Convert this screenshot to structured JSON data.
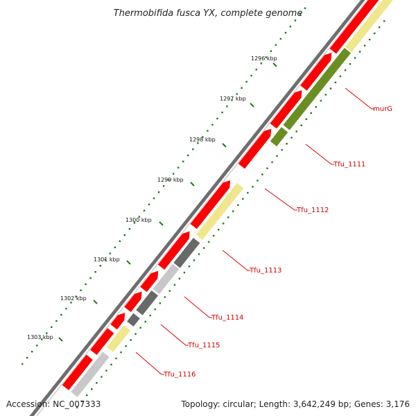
{
  "title": "Thermobifida fusca YX, complete genome",
  "footer": {
    "accession": "Accession: NC_007333",
    "summary": "Topology: circular; Length: 3,642,249 bp; Genes: 3,176"
  },
  "ruler": {
    "ticks": [
      {
        "label": "1296 kbp"
      },
      {
        "label": "1297 kbp"
      },
      {
        "label": "1298 kbp"
      },
      {
        "label": "1299 kbp"
      },
      {
        "label": "1300 kbp"
      },
      {
        "label": "1301 kbp"
      },
      {
        "label": "1302 kbp"
      },
      {
        "label": "1303 kbp"
      }
    ]
  },
  "gene_labels": [
    {
      "label": "murG"
    },
    {
      "label": "Tfu_1111"
    },
    {
      "label": "Tfu_1112"
    },
    {
      "label": "Tfu_1113"
    },
    {
      "label": "Tfu_1114"
    },
    {
      "label": "Tfu_1115"
    },
    {
      "label": "Tfu_1116"
    }
  ],
  "colors": {
    "cds": "#ff0000",
    "olive_feature": "#6b8e23",
    "pale_yellow_feature": "#f0e68c",
    "dark_grey_feature": "#696969",
    "light_grey_feature": "#c8c8c8",
    "ruler_tick": "#1a7a1a",
    "gene_label": "#cc0000",
    "backbone": "#808080"
  }
}
